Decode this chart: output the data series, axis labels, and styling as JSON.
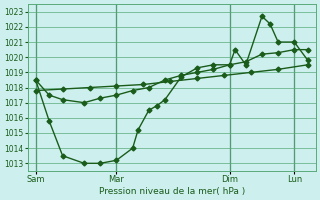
{
  "xlabel": "Pression niveau de la mer( hPa )",
  "bg_color": "#cdf0ef",
  "grid_color": "#5aaa7a",
  "line_color": "#1a5c1a",
  "ylim": [
    1012.5,
    1023.5
  ],
  "yticks": [
    1013,
    1014,
    1015,
    1016,
    1017,
    1018,
    1019,
    1020,
    1021,
    1022,
    1023
  ],
  "xtick_labels": [
    "Sam",
    "Mar",
    "Dim",
    "Lun"
  ],
  "xtick_positions": [
    0,
    30,
    72,
    96
  ],
  "vline_positions": [
    0,
    30,
    72,
    96
  ],
  "xlim": [
    -3,
    104
  ],
  "line_zigzag_x": [
    0,
    5,
    10,
    18,
    24,
    30,
    36,
    38,
    42,
    45,
    48,
    54,
    60,
    66,
    72,
    74,
    78,
    84,
    87,
    90,
    96,
    101
  ],
  "line_zigzag_y": [
    1018.5,
    1015.8,
    1013.5,
    1013.0,
    1013.0,
    1013.2,
    1014.0,
    1015.2,
    1016.5,
    1016.8,
    1017.2,
    1018.7,
    1019.3,
    1019.5,
    1019.5,
    1020.5,
    1019.5,
    1022.7,
    1022.2,
    1021.0,
    1021.0,
    1019.8
  ],
  "line_upper_x": [
    0,
    5,
    10,
    18,
    24,
    30,
    36,
    42,
    48,
    54,
    60,
    66,
    72,
    78,
    84,
    90,
    96,
    101
  ],
  "line_upper_y": [
    1018.5,
    1017.5,
    1017.2,
    1017.0,
    1017.3,
    1017.5,
    1017.8,
    1018.0,
    1018.5,
    1018.8,
    1019.0,
    1019.2,
    1019.5,
    1019.7,
    1020.2,
    1020.3,
    1020.5,
    1020.5
  ],
  "line_lower_x": [
    0,
    10,
    20,
    30,
    40,
    50,
    60,
    70,
    80,
    90,
    101
  ],
  "line_lower_y": [
    1017.8,
    1017.9,
    1018.0,
    1018.1,
    1018.2,
    1018.4,
    1018.6,
    1018.8,
    1019.0,
    1019.2,
    1019.5
  ],
  "marker": "D",
  "marker_size": 2.5,
  "line_width": 1.0
}
